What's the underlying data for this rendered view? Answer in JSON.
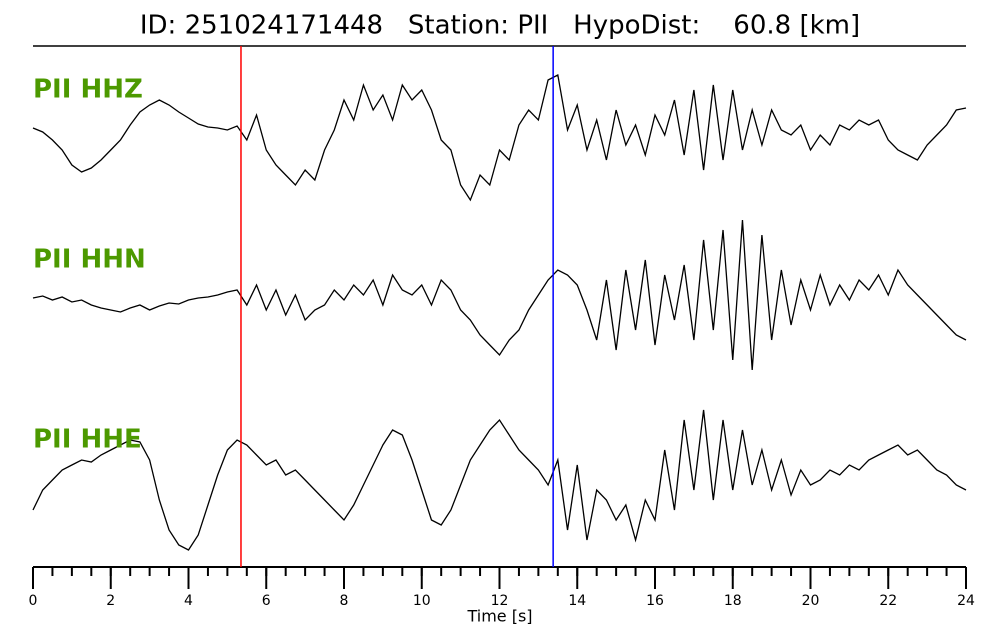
{
  "chart_data": {
    "type": "seismogram",
    "title": "ID: 251024171448   Station: PII   HypoDist:    60.8 [km]",
    "xlabel": "Time [s]",
    "xlim": [
      0,
      24
    ],
    "xticks": [
      0,
      2,
      4,
      6,
      8,
      10,
      12,
      14,
      16,
      18,
      20,
      22,
      24
    ],
    "minor_xticks": [
      0,
      0.5,
      1,
      1.5,
      2,
      2.5,
      3,
      3.5,
      4,
      4.5,
      5,
      5.5,
      6,
      6.5,
      7,
      7.5,
      8,
      8.5,
      9,
      9.5,
      10,
      10.5,
      11,
      11.5,
      12,
      12.5,
      13,
      13.5,
      14,
      14.5,
      15,
      15.5,
      16,
      16.5,
      17,
      17.5,
      18,
      18.5,
      19,
      19.5,
      20,
      20.5,
      21,
      21.5,
      22,
      22.5,
      23,
      23.5,
      24
    ],
    "ylim": [
      -85,
      85
    ],
    "label_color": "#4c9900",
    "x": [
      0,
      0.25,
      0.5,
      0.75,
      1,
      1.25,
      1.5,
      1.75,
      2,
      2.25,
      2.5,
      2.75,
      3,
      3.25,
      3.5,
      3.75,
      4,
      4.25,
      4.5,
      4.75,
      5,
      5.25,
      5.5,
      5.75,
      6,
      6.25,
      6.5,
      6.75,
      7,
      7.25,
      7.5,
      7.75,
      8,
      8.25,
      8.5,
      8.75,
      9,
      9.25,
      9.5,
      9.75,
      10,
      10.25,
      10.5,
      10.75,
      11,
      11.25,
      11.5,
      11.75,
      12,
      12.25,
      12.5,
      12.75,
      13,
      13.25,
      13.5,
      13.75,
      14,
      14.25,
      14.5,
      14.75,
      15,
      15.25,
      15.5,
      15.75,
      16,
      16.25,
      16.5,
      16.75,
      17,
      17.25,
      17.5,
      17.75,
      18,
      18.25,
      18.5,
      18.75,
      19,
      19.25,
      19.5,
      19.75,
      20,
      20.25,
      20.5,
      20.75,
      21,
      21.25,
      21.5,
      21.75,
      22,
      22.25,
      22.5,
      22.75,
      23,
      23.25,
      23.5,
      23.75,
      24
    ],
    "series": [
      {
        "name": "PII HHZ",
        "color": "#000000",
        "values": [
          2,
          -2,
          -10,
          -20,
          -35,
          -42,
          -38,
          -30,
          -20,
          -10,
          5,
          18,
          25,
          30,
          25,
          18,
          12,
          6,
          3,
          2,
          0,
          4,
          -10,
          15,
          -20,
          -35,
          -45,
          -55,
          -40,
          -50,
          -20,
          0,
          30,
          10,
          45,
          20,
          35,
          10,
          45,
          30,
          40,
          20,
          -10,
          -20,
          -55,
          -70,
          -45,
          -55,
          -20,
          -30,
          5,
          20,
          10,
          50,
          55,
          0,
          25,
          -20,
          10,
          -30,
          20,
          -15,
          5,
          -25,
          15,
          -5,
          30,
          -25,
          40,
          -40,
          45,
          -30,
          40,
          -20,
          20,
          -15,
          20,
          0,
          -5,
          5,
          -20,
          -5,
          -15,
          5,
          0,
          10,
          5,
          10,
          -10,
          -20,
          -25,
          -30,
          -15,
          -5,
          5,
          20,
          22
        ]
      },
      {
        "name": "PII HHN",
        "color": "#000000",
        "values": [
          2,
          4,
          0,
          3,
          -2,
          0,
          -5,
          -8,
          -10,
          -12,
          -8,
          -5,
          -10,
          -6,
          -3,
          -4,
          0,
          2,
          3,
          5,
          8,
          10,
          -5,
          15,
          -10,
          10,
          -15,
          5,
          -20,
          -10,
          -5,
          10,
          0,
          15,
          5,
          20,
          -5,
          25,
          10,
          5,
          15,
          -5,
          20,
          10,
          -10,
          -20,
          -35,
          -45,
          -55,
          -40,
          -30,
          -10,
          5,
          20,
          30,
          25,
          15,
          -10,
          -40,
          20,
          -50,
          30,
          -30,
          40,
          -45,
          25,
          -20,
          35,
          -40,
          60,
          -30,
          70,
          -60,
          80,
          -70,
          65,
          -40,
          30,
          -25,
          20,
          -10,
          25,
          -5,
          15,
          0,
          20,
          10,
          25,
          5,
          30,
          15,
          5,
          -5,
          -15,
          -25,
          -35,
          -40
        ]
      },
      {
        "name": "PII HHE",
        "color": "#000000",
        "values": [
          -30,
          -10,
          0,
          10,
          15,
          20,
          18,
          25,
          30,
          35,
          40,
          38,
          20,
          -20,
          -50,
          -65,
          -70,
          -55,
          -25,
          5,
          30,
          40,
          35,
          25,
          15,
          20,
          5,
          10,
          0,
          -10,
          -20,
          -30,
          -40,
          -25,
          -5,
          15,
          35,
          50,
          45,
          20,
          -10,
          -40,
          -45,
          -30,
          -5,
          20,
          35,
          50,
          60,
          45,
          30,
          20,
          10,
          -5,
          20,
          -50,
          15,
          -60,
          -10,
          -20,
          -40,
          -25,
          -60,
          -20,
          -40,
          30,
          -30,
          60,
          -10,
          70,
          -20,
          60,
          -10,
          50,
          -5,
          30,
          -10,
          20,
          -15,
          10,
          -5,
          0,
          10,
          5,
          15,
          10,
          20,
          25,
          30,
          35,
          25,
          30,
          20,
          10,
          5,
          -5,
          -10
        ]
      }
    ],
    "vlines": [
      {
        "x": 5.35,
        "color": "#ff0000"
      },
      {
        "x": 13.38,
        "color": "#0000ff"
      }
    ]
  }
}
